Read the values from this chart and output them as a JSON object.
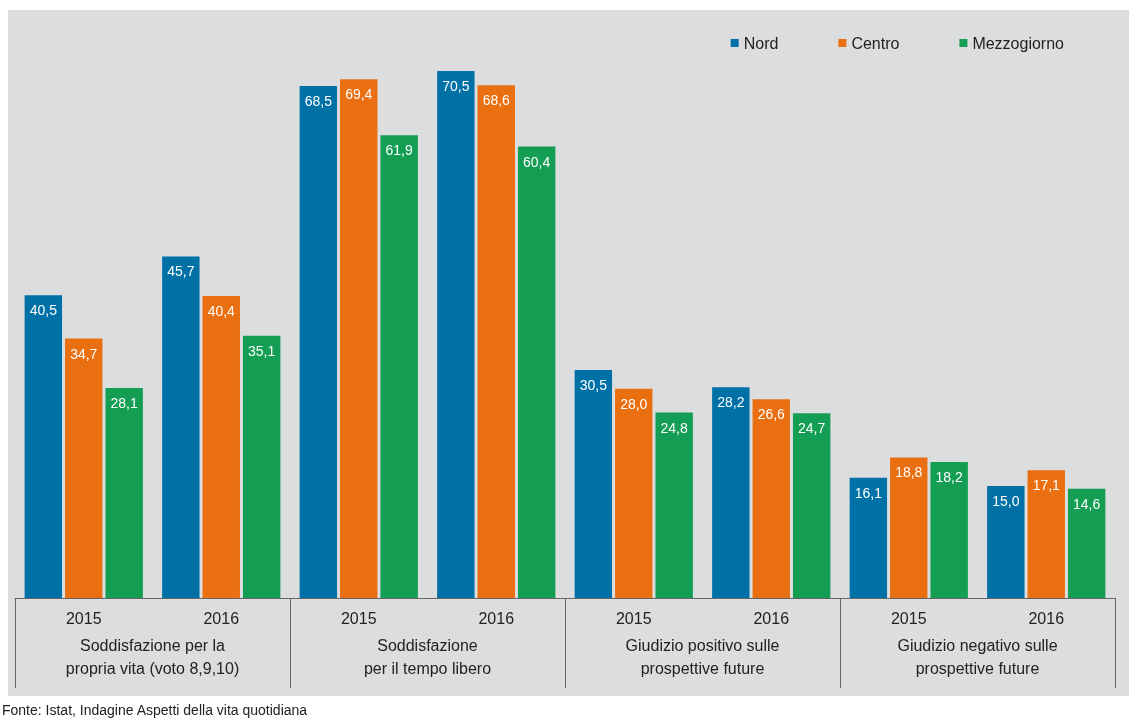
{
  "chart_data": {
    "type": "bar",
    "categories": [
      "2015",
      "2016",
      "2015",
      "2016",
      "2015",
      "2016",
      "2015",
      "2016"
    ],
    "annotations": [
      "Soddisfazione per la\npropria vita (voto 8,9,10)",
      "Soddisfazione\nper il tempo libero",
      "Giudizio positivo sulle\nprospettive future",
      "Giudizio negativo sulle\nprospettive future",
      "Fonte: Istat, Indagine Aspetti della vita quotidiana"
    ],
    "series": [
      {
        "name": "Nord",
        "color": "#0071a7",
        "values": [
          40.5,
          45.7,
          68.5,
          70.5,
          30.5,
          28.2,
          16.1,
          15.0
        ],
        "value_labels": [
          "40,5",
          "45,7",
          "68,5",
          "70,5",
          "30,5",
          "28,2",
          "16,1",
          "15,0"
        ]
      },
      {
        "name": "Centro",
        "color": "#ea6f10",
        "values": [
          34.7,
          40.4,
          69.4,
          68.6,
          28.0,
          26.6,
          18.8,
          17.1
        ],
        "value_labels": [
          "34,7",
          "40,4",
          "69,4",
          "68,6",
          "28,0",
          "26,6",
          "18,8",
          "17,1"
        ]
      },
      {
        "name": "Mezzogiorno",
        "color": "#139e54",
        "values": [
          28.1,
          35.1,
          61.9,
          60.4,
          24.8,
          24.7,
          18.2,
          14.6
        ],
        "value_labels": [
          "28,1",
          "35,1",
          "61,9",
          "60,4",
          "24,8",
          "24,7",
          "18,2",
          "14,6"
        ]
      }
    ],
    "legend": "top right"
  }
}
